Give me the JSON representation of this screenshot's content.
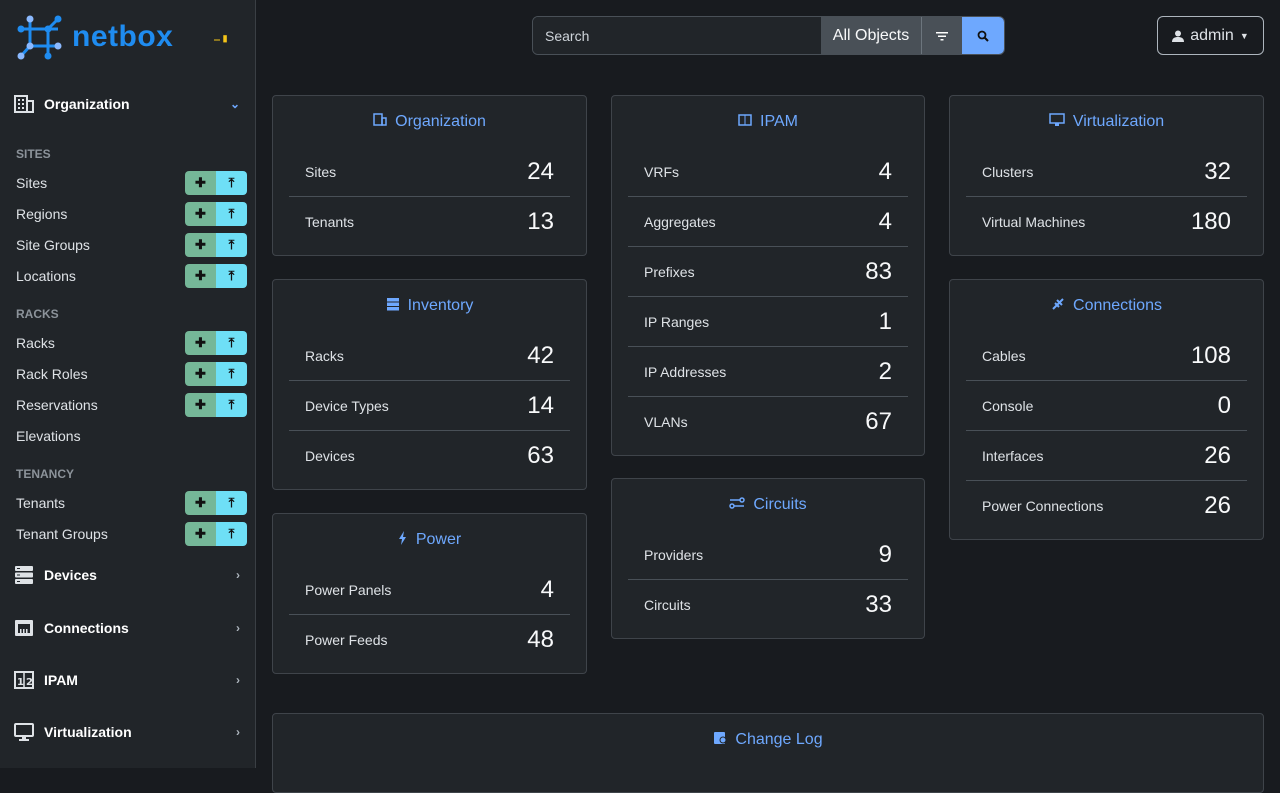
{
  "brand": {
    "name": "netbox"
  },
  "sidebar": {
    "organization": {
      "label": "Organization",
      "sections": [
        {
          "title": "SITES",
          "items": [
            {
              "label": "Sites",
              "buttons": true
            },
            {
              "label": "Regions",
              "buttons": true
            },
            {
              "label": "Site Groups",
              "buttons": true
            },
            {
              "label": "Locations",
              "buttons": true
            }
          ]
        },
        {
          "title": "RACKS",
          "items": [
            {
              "label": "Racks",
              "buttons": true
            },
            {
              "label": "Rack Roles",
              "buttons": true
            },
            {
              "label": "Reservations",
              "buttons": true
            },
            {
              "label": "Elevations",
              "buttons": false
            }
          ]
        },
        {
          "title": "TENANCY",
          "items": [
            {
              "label": "Tenants",
              "buttons": true
            },
            {
              "label": "Tenant Groups",
              "buttons": true
            }
          ]
        }
      ]
    },
    "menus": [
      {
        "label": "Devices",
        "icon": "server-icon"
      },
      {
        "label": "Connections",
        "icon": "ethernet-icon"
      },
      {
        "label": "IPAM",
        "icon": "counter-icon"
      },
      {
        "label": "Virtualization",
        "icon": "monitor-icon"
      }
    ]
  },
  "search": {
    "placeholder": "Search",
    "scope": "All Objects"
  },
  "user": {
    "name": "admin"
  },
  "colors": {
    "accent": "#6ea8fe",
    "add": "#75b798",
    "import": "#6edff6",
    "brand": "#1f8cf0"
  },
  "cards": {
    "organization": {
      "title": "Organization",
      "rows": [
        {
          "label": "Sites",
          "value": "24"
        },
        {
          "label": "Tenants",
          "value": "13"
        }
      ]
    },
    "inventory": {
      "title": "Inventory",
      "rows": [
        {
          "label": "Racks",
          "value": "42"
        },
        {
          "label": "Device Types",
          "value": "14"
        },
        {
          "label": "Devices",
          "value": "63"
        }
      ]
    },
    "power": {
      "title": "Power",
      "rows": [
        {
          "label": "Power Panels",
          "value": "4"
        },
        {
          "label": "Power Feeds",
          "value": "48"
        }
      ]
    },
    "ipam": {
      "title": "IPAM",
      "rows": [
        {
          "label": "VRFs",
          "value": "4"
        },
        {
          "label": "Aggregates",
          "value": "4"
        },
        {
          "label": "Prefixes",
          "value": "83"
        },
        {
          "label": "IP Ranges",
          "value": "1"
        },
        {
          "label": "IP Addresses",
          "value": "2"
        },
        {
          "label": "VLANs",
          "value": "67"
        }
      ]
    },
    "circuits": {
      "title": "Circuits",
      "rows": [
        {
          "label": "Providers",
          "value": "9"
        },
        {
          "label": "Circuits",
          "value": "33"
        }
      ]
    },
    "virtualization": {
      "title": "Virtualization",
      "rows": [
        {
          "label": "Clusters",
          "value": "32"
        },
        {
          "label": "Virtual Machines",
          "value": "180"
        }
      ]
    },
    "connections": {
      "title": "Connections",
      "rows": [
        {
          "label": "Cables",
          "value": "108"
        },
        {
          "label": "Console",
          "value": "0"
        },
        {
          "label": "Interfaces",
          "value": "26"
        },
        {
          "label": "Power Connections",
          "value": "26"
        }
      ]
    },
    "changelog": {
      "title": "Change Log"
    }
  }
}
